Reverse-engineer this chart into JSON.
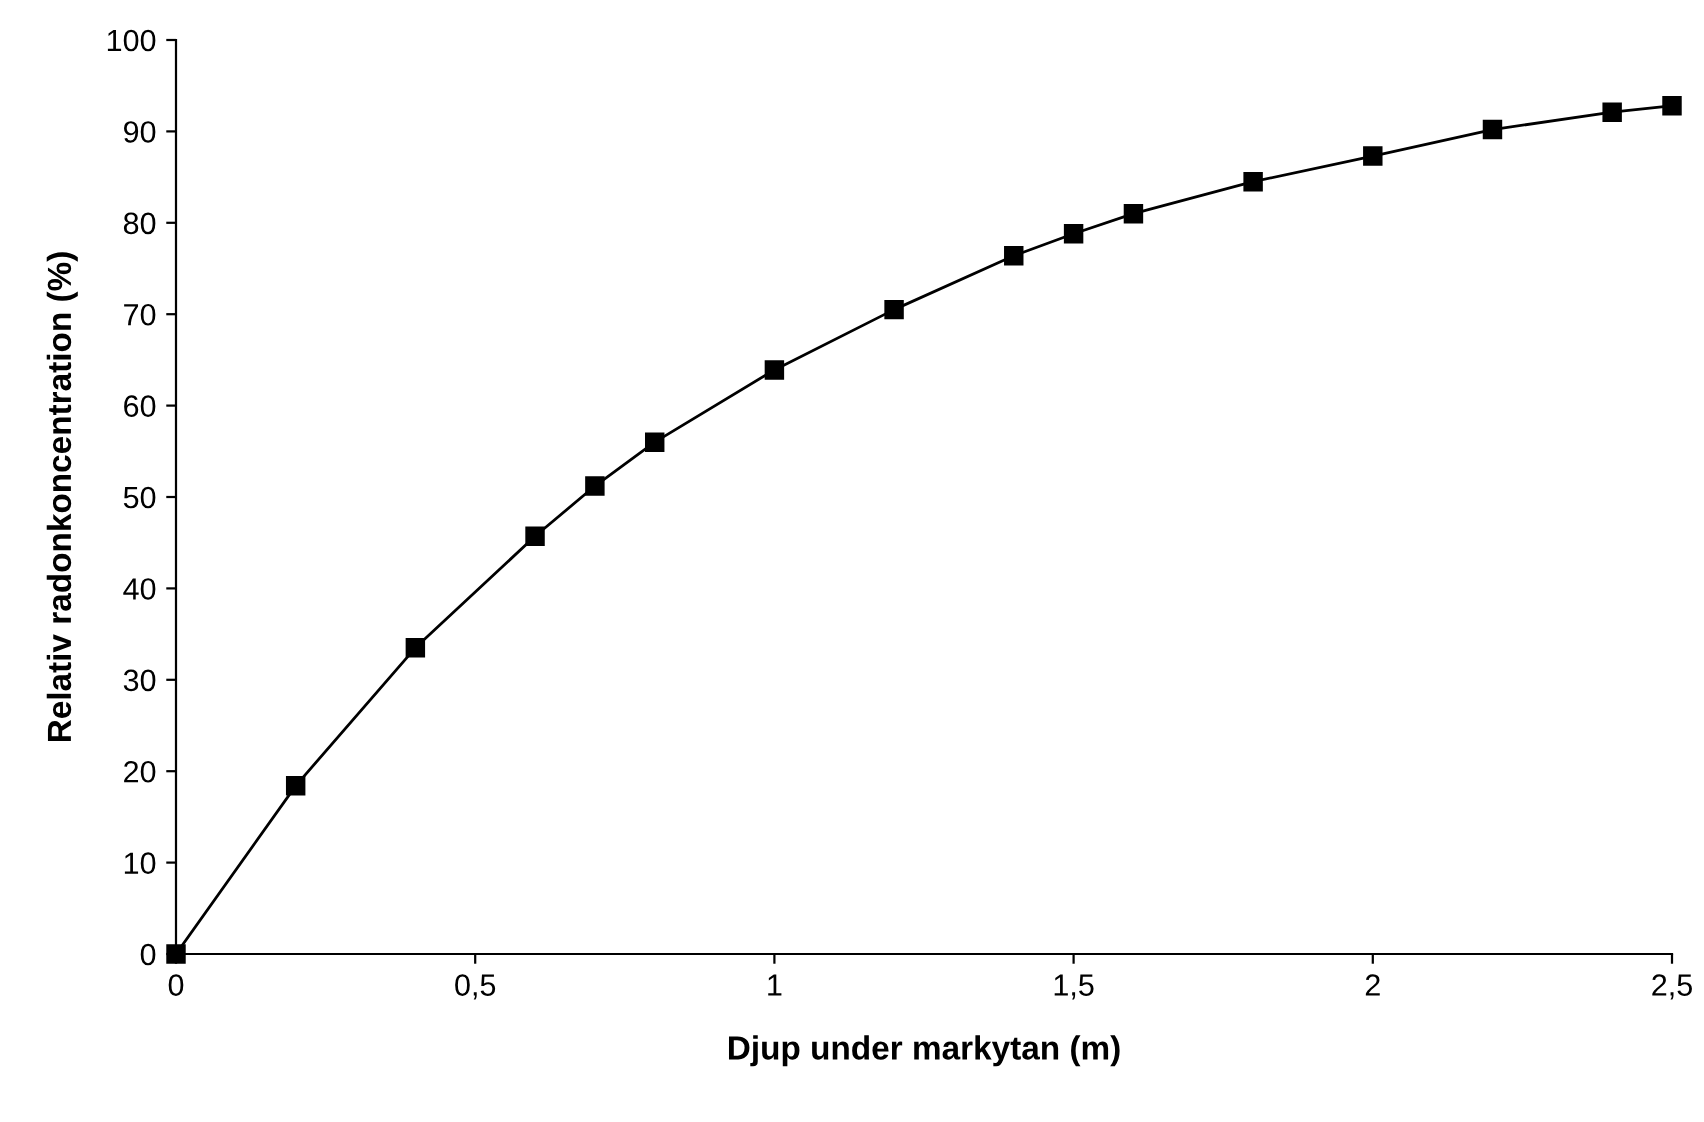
{
  "chart_data": {
    "type": "line",
    "xlabel": "Djup under markytan (m)",
    "ylabel": "Relativ radonkoncentration (%)",
    "x": [
      0,
      0.2,
      0.4,
      0.6,
      0.7,
      0.8,
      1.0,
      1.2,
      1.4,
      1.5,
      1.6,
      1.8,
      2.0,
      2.2,
      2.4,
      2.5
    ],
    "series": [
      {
        "color": "#000000",
        "values": [
          0,
          18.4,
          33.5,
          45.7,
          51.2,
          56,
          63.9,
          70.5,
          76.4,
          78.8,
          81,
          84.5,
          87.3,
          90.2,
          92.1,
          92.8
        ]
      }
    ],
    "xlim": [
      0,
      2.5
    ],
    "ylim": [
      0,
      100
    ],
    "xticks": [
      0,
      {
        "value": 0.5,
        "label": "0,5"
      },
      1,
      {
        "value": 1.5,
        "label": "1,5"
      },
      2,
      {
        "value": 2.5,
        "label": "2,5"
      }
    ],
    "yticks": [
      0,
      10,
      20,
      30,
      40,
      50,
      60,
      70,
      80,
      90,
      100
    ],
    "grid": false,
    "legend": false,
    "marker": "square",
    "line_style": "solid"
  }
}
